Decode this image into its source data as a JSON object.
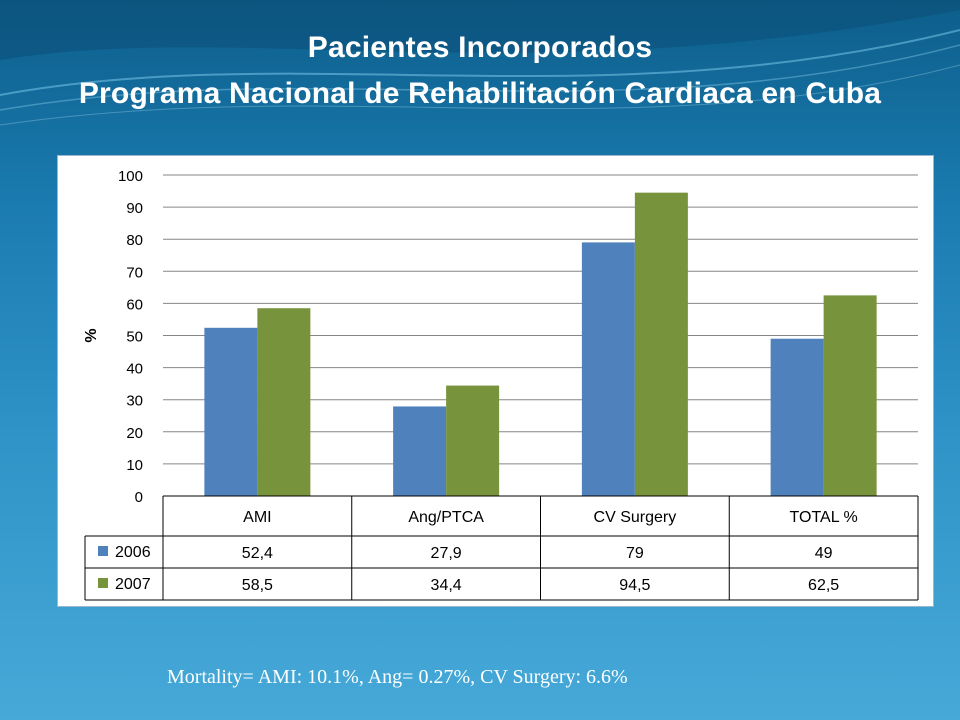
{
  "slide": {
    "title_line1": "Pacientes Incorporados",
    "title_line2": "Programa Nacional de Rehabilitación Cardiaca en Cuba",
    "footnote": "Mortality= AMI: 10.1%, Ang= 0.27%, CV Surgery: 6.6%"
  },
  "colors": {
    "series_2006": "#4f81bd",
    "series_2007": "#77933c",
    "grid": "#868686",
    "text": "#000000"
  },
  "chart_data": {
    "type": "bar",
    "title": "",
    "xlabel": "",
    "ylabel": "%",
    "ylim": [
      0,
      100
    ],
    "yticks": [
      0,
      10,
      20,
      30,
      40,
      50,
      60,
      70,
      80,
      90,
      100
    ],
    "grid": true,
    "legend": "data-table-left",
    "categories": [
      "AMI",
      "Ang/PTCA",
      "CV Surgery",
      "TOTAL %"
    ],
    "series": [
      {
        "name": "2006",
        "values": [
          52.4,
          27.9,
          79,
          49
        ],
        "labels": [
          "52,4",
          "27,9",
          "79",
          "49"
        ]
      },
      {
        "name": "2007",
        "values": [
          58.5,
          34.4,
          94.5,
          62.5
        ],
        "labels": [
          "58,5",
          "34,4",
          "94,5",
          "62,5"
        ]
      }
    ]
  }
}
